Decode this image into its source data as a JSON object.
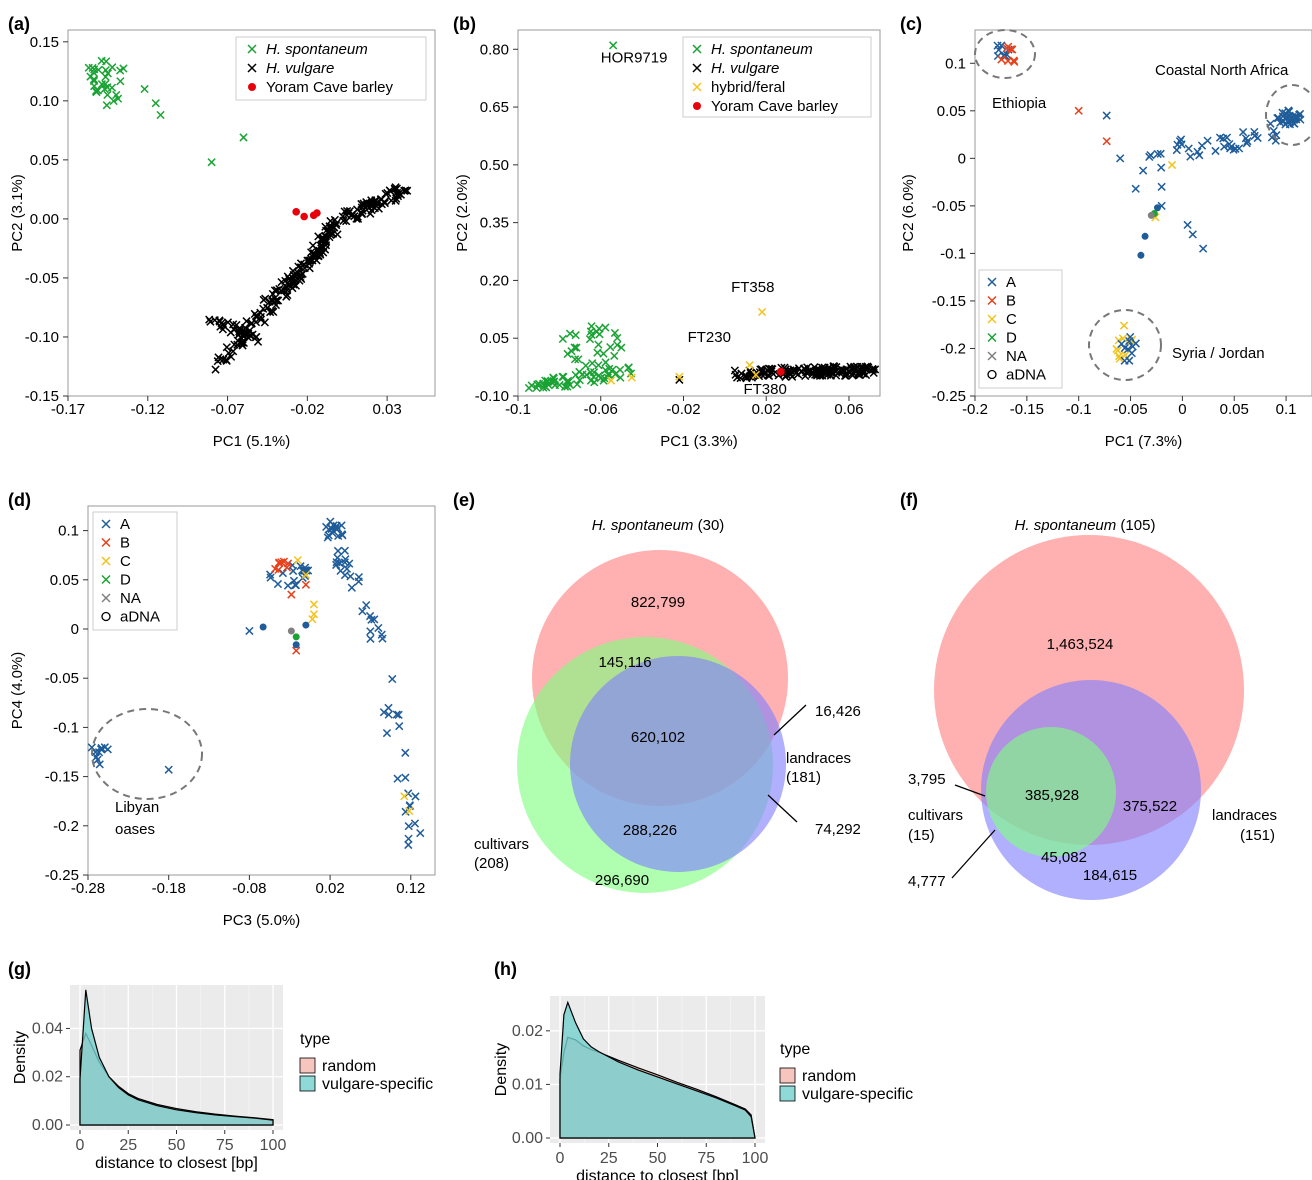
{
  "colors": {
    "spontaneum": "#1aa334",
    "vulgare": "#000000",
    "hybrid": "#f2c31c",
    "yoram": "#e8000b",
    "A": "#1f5c99",
    "B": "#e8401a",
    "C": "#f2c31c",
    "D": "#1aa334",
    "NA": "#808080",
    "venn_spontaneum": "#ff7f7f",
    "venn_cultivars": "#7fff7f",
    "venn_landraces": "#7f7fff",
    "random_fill": "#f4b6ae",
    "vulgare_specific_fill": "#73cfcf",
    "ggplot_panel": "#ebebeb"
  },
  "chart_data": [
    {
      "panel": "(a)",
      "type": "scatter",
      "xlabel": "PC1 (5.1%)",
      "ylabel": "PC2 (3.1%)",
      "xlim": [
        -0.17,
        0.06
      ],
      "ylim": [
        -0.15,
        0.16
      ],
      "xticks": [
        "-0.17",
        "-0.12",
        "-0.07",
        "-0.02",
        "0.03"
      ],
      "yticks": [
        "0.15",
        "0.10",
        "0.05",
        "0.00",
        "-0.05",
        "-0.10",
        "-0.15"
      ],
      "legend": [
        "H. spontaneum",
        "H. vulgare",
        "Yoram Cave barley"
      ],
      "legend_italic": [
        true,
        true,
        false
      ],
      "legend_position": "top-right"
    },
    {
      "panel": "(b)",
      "type": "scatter",
      "xlabel": "PC1 (3.3%)",
      "ylabel": "PC2 (2.0%)",
      "xlim": [
        -0.1,
        0.075
      ],
      "ylim": [
        -0.1,
        0.85
      ],
      "xticks": [
        "-0.1",
        "-0.06",
        "-0.02",
        "0.02",
        "0.06"
      ],
      "yticks": [
        "0.80",
        "0.65",
        "0.50",
        "0.35",
        "0.20",
        "0.05",
        "-0.10"
      ],
      "legend": [
        "H. spontaneum",
        "H. vulgare",
        "hybrid/feral",
        "Yoram Cave barley"
      ],
      "legend_italic": [
        true,
        true,
        false,
        false
      ],
      "legend_position": "top-right",
      "annotations": [
        "HOR9719",
        "FT358",
        "FT230",
        "FT380"
      ]
    },
    {
      "panel": "(c)",
      "type": "scatter",
      "xlabel": "PC1 (7.3%)",
      "ylabel": "PC2 (6.0%)",
      "xlim": [
        -0.2,
        0.125
      ],
      "ylim": [
        -0.25,
        0.135
      ],
      "xticks": [
        "-0.2",
        "-0.15",
        "-0.1",
        "-0.05",
        "0",
        "0.05",
        "0.1"
      ],
      "yticks": [
        "0.1",
        "0.05",
        "0",
        "-0.05",
        "-0.1",
        "-0.15",
        "-0.2",
        "-0.25"
      ],
      "legend": [
        "A",
        "B",
        "C",
        "D",
        "NA",
        "aDNA"
      ],
      "legend_position": "bottom-left",
      "annotations": [
        "Ethiopia",
        "Coastal North Africa",
        "Syria / Jordan"
      ]
    },
    {
      "panel": "(d)",
      "type": "scatter",
      "xlabel": "PC3 (5.0%)",
      "ylabel": "PC4 (4.0%)",
      "xlim": [
        -0.28,
        0.15
      ],
      "ylim": [
        -0.25,
        0.125
      ],
      "xticks": [
        "-0.28",
        "-0.18",
        "-0.08",
        "0.02",
        "0.12"
      ],
      "yticks": [
        "0.1",
        "0.05",
        "0",
        "-0.05",
        "-0.1",
        "-0.15",
        "-0.2",
        "-0.25"
      ],
      "legend": [
        "A",
        "B",
        "C",
        "D",
        "NA",
        "aDNA"
      ],
      "legend_position": "top-left",
      "annotations": [
        "Libyan",
        "oases"
      ]
    },
    {
      "panel": "(e)",
      "type": "venn",
      "sets": {
        "spontaneum": "H. spontaneum",
        "spontaneum_n": "(30)",
        "cultivars": "cultivars",
        "cultivars_n": "(208)",
        "landraces": "landraces",
        "landraces_n": "(181)"
      },
      "regions": {
        "spont_only": "822,799",
        "spont_cult": "145,116",
        "all": "620,102",
        "spont_land": "16,426",
        "cult_land": "288,226",
        "cult_only": "296,690",
        "land_only": "74,292"
      }
    },
    {
      "panel": "(f)",
      "type": "venn",
      "sets": {
        "spontaneum": "H. spontaneum",
        "spontaneum_n": "(105)",
        "cultivars": "cultivars",
        "cultivars_n": "(15)",
        "landraces": "landraces",
        "landraces_n": "(151)"
      },
      "regions": {
        "spont_only": "1,463,524",
        "spont_cult": "3,795",
        "all": "385,928",
        "spont_land": "375,522",
        "cult_land": "45,082",
        "cult_only": "4,777",
        "land_only": "184,615"
      }
    },
    {
      "panel": "(g)",
      "type": "area",
      "xlabel": "distance to closest [bp]",
      "ylabel": "Density",
      "xlim": [
        0,
        100
      ],
      "ylim": [
        0,
        0.058
      ],
      "xticks": [
        "0",
        "25",
        "50",
        "75",
        "100"
      ],
      "yticks": [
        "0.00",
        "0.02",
        "0.04"
      ],
      "legend_title": "type",
      "legend": [
        "random",
        "vulgare-specific"
      ],
      "x": [
        0,
        3,
        6,
        10,
        15,
        20,
        25,
        30,
        40,
        50,
        60,
        70,
        80,
        90,
        100
      ],
      "series": [
        {
          "name": "random",
          "values": [
            0.031,
            0.038,
            0.033,
            0.026,
            0.02,
            0.016,
            0.013,
            0.011,
            0.0085,
            0.0068,
            0.0055,
            0.0045,
            0.0037,
            0.003,
            0.0022
          ]
        },
        {
          "name": "vulgare-specific",
          "values": [
            0.019,
            0.056,
            0.04,
            0.028,
            0.02,
            0.0155,
            0.0125,
            0.0105,
            0.008,
            0.0063,
            0.0051,
            0.0042,
            0.0035,
            0.0029,
            0.002
          ]
        }
      ]
    },
    {
      "panel": "(h)",
      "type": "area",
      "xlabel": "distance to closest [bp]",
      "ylabel": "Density",
      "xlim": [
        0,
        100
      ],
      "ylim": [
        0,
        0.0265
      ],
      "xticks": [
        "0",
        "25",
        "50",
        "75",
        "100"
      ],
      "yticks": [
        "0.00",
        "0.01",
        "0.02"
      ],
      "legend_title": "type",
      "legend": [
        "random",
        "vulgare-specific"
      ],
      "x": [
        0,
        2,
        4,
        8,
        12,
        16,
        20,
        30,
        40,
        50,
        60,
        70,
        80,
        90,
        95,
        98,
        100
      ],
      "series": [
        {
          "name": "random",
          "values": [
            0.011,
            0.016,
            0.0188,
            0.0183,
            0.0172,
            0.0165,
            0.016,
            0.0145,
            0.0131,
            0.0118,
            0.0104,
            0.0091,
            0.0077,
            0.0062,
            0.0054,
            0.0043,
            0.0
          ]
        },
        {
          "name": "vulgare-specific",
          "values": [
            0.012,
            0.023,
            0.0253,
            0.0215,
            0.0185,
            0.017,
            0.0161,
            0.0142,
            0.0127,
            0.0114,
            0.0101,
            0.0088,
            0.0075,
            0.006,
            0.0052,
            0.004,
            0.0
          ]
        }
      ]
    }
  ]
}
